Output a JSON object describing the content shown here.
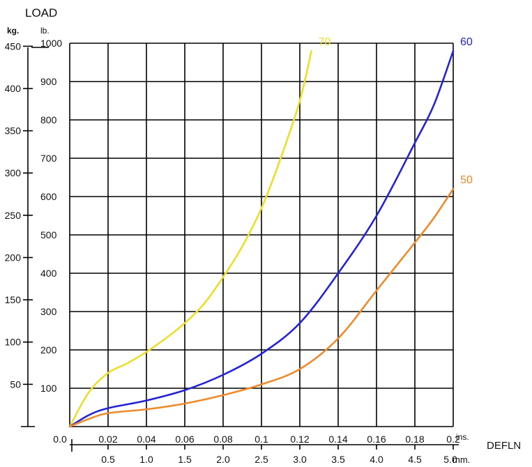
{
  "chart_data": {
    "type": "line",
    "ylabel": "LOAD",
    "xlabel": "DEFLN",
    "y_units_primary": "kg.",
    "y_units_secondary": "lb.",
    "x_units_primary": "ins.",
    "x_units_secondary": "mm.",
    "x_ins_ticks": [
      "0.0",
      "0.02",
      "0.04",
      "0.06",
      "0.08",
      "0.1",
      "0.12",
      "0.14",
      "0.16",
      "0.18",
      "0.2"
    ],
    "x_mm_ticks": [
      "0.5",
      "1.0",
      "1.5",
      "2.0",
      "2.5",
      "3.0",
      "3.5",
      "4.0",
      "4.5",
      "5.0"
    ],
    "y_lb_ticks": [
      "100",
      "200",
      "300",
      "400",
      "500",
      "600",
      "700",
      "800",
      "900",
      "1000"
    ],
    "y_kg_ticks": [
      "50",
      "100",
      "150",
      "200",
      "250",
      "300",
      "350",
      "400",
      "450"
    ],
    "xlim_ins": [
      0,
      0.2
    ],
    "ylim_lb": [
      0,
      1000
    ],
    "grid": true,
    "series": [
      {
        "name": "70",
        "color": "#ecdf2c",
        "x": [
          0,
          0.01,
          0.02,
          0.03,
          0.04,
          0.05,
          0.06,
          0.07,
          0.08,
          0.09,
          0.1,
          0.11,
          0.12,
          0.126
        ],
        "y": [
          0,
          90,
          140,
          165,
          195,
          230,
          270,
          320,
          390,
          470,
          570,
          700,
          850,
          980
        ]
      },
      {
        "name": "60",
        "color": "#2323d8",
        "x": [
          0,
          0.01,
          0.02,
          0.04,
          0.06,
          0.08,
          0.1,
          0.12,
          0.14,
          0.16,
          0.18,
          0.19,
          0.2
        ],
        "y": [
          0,
          30,
          48,
          68,
          95,
          135,
          190,
          270,
          400,
          550,
          740,
          840,
          980
        ]
      },
      {
        "name": "50",
        "color": "#ee8a2c",
        "x": [
          0,
          0.01,
          0.02,
          0.04,
          0.06,
          0.08,
          0.1,
          0.12,
          0.14,
          0.16,
          0.18,
          0.19,
          0.2
        ],
        "y": [
          0,
          20,
          35,
          45,
          60,
          82,
          110,
          150,
          230,
          355,
          480,
          545,
          620
        ]
      }
    ]
  }
}
